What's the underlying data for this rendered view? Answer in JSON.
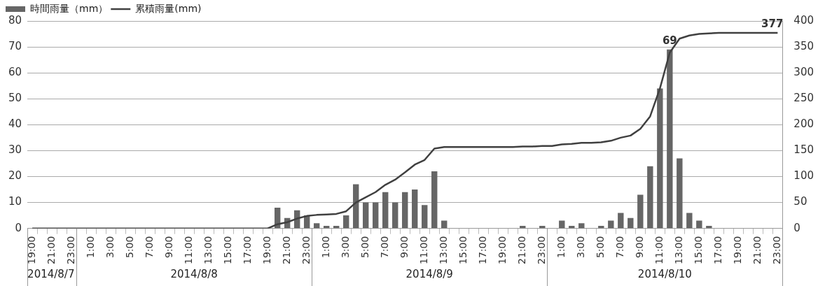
{
  "chart_data": {
    "type": "bar",
    "categories": [
      "19:00",
      null,
      "21:00",
      null,
      "23:00",
      null,
      "1:00",
      null,
      "3:00",
      null,
      "5:00",
      null,
      "7:00",
      null,
      "9:00",
      null,
      "11:00",
      null,
      "13:00",
      null,
      "15:00",
      null,
      "17:00",
      null,
      "19:00",
      null,
      "21:00",
      null,
      "23:00",
      null,
      "1:00",
      null,
      "3:00",
      null,
      "5:00",
      null,
      "7:00",
      null,
      "9:00",
      null,
      "11:00",
      null,
      "13:00",
      null,
      "15:00",
      null,
      "17:00",
      null,
      "19:00",
      null,
      "21:00",
      null,
      "23:00",
      null,
      "1:00",
      null,
      "3:00",
      null,
      "5:00",
      null,
      "7:00",
      null,
      "9:00",
      null,
      "11:00",
      null,
      "13:00",
      null,
      "15:00",
      null,
      "17:00",
      null,
      "19:00",
      null,
      "21:00",
      null,
      "23:00"
    ],
    "series": [
      {
        "name": "時間雨量（mm）",
        "color": "#666666",
        "values": [
          0,
          0,
          0,
          0,
          0,
          0,
          0,
          0,
          0,
          0,
          0,
          0,
          0,
          0,
          0,
          0,
          0,
          0,
          0,
          0,
          0,
          0,
          0,
          0,
          0,
          8,
          4,
          7,
          5,
          2,
          1,
          1,
          5,
          17,
          10,
          10,
          14,
          10,
          14,
          15,
          9,
          22,
          3,
          0,
          0,
          0,
          0,
          0,
          0,
          0,
          1,
          0,
          1,
          0,
          3,
          1,
          2,
          0,
          1,
          3,
          6,
          4,
          13,
          24,
          54,
          69,
          27,
          6,
          3,
          1,
          0,
          0,
          0,
          0,
          0,
          0,
          0
        ],
        "value_labels": [
          null,
          null,
          null,
          null,
          null,
          null,
          null,
          null,
          null,
          null,
          null,
          null,
          null,
          null,
          null,
          null,
          null,
          null,
          null,
          null,
          null,
          null,
          null,
          null,
          null,
          null,
          null,
          null,
          null,
          null,
          null,
          null,
          null,
          null,
          null,
          null,
          null,
          null,
          null,
          null,
          null,
          null,
          null,
          null,
          null,
          null,
          null,
          null,
          null,
          null,
          null,
          null,
          null,
          null,
          null,
          null,
          null,
          null,
          null,
          null,
          null,
          null,
          null,
          null,
          null,
          "69",
          null,
          null,
          null,
          null,
          null,
          null,
          null,
          null,
          null,
          null,
          null
        ]
      },
      {
        "name": "累積雨量(mm)",
        "type": "line",
        "axis": "y2",
        "color": "#404040",
        "values": [
          0,
          0,
          0,
          0,
          0,
          0,
          0,
          0,
          0,
          0,
          0,
          0,
          0,
          0,
          0,
          0,
          0,
          0,
          0,
          0,
          0,
          0,
          0,
          0,
          0,
          8,
          12,
          19,
          24,
          26,
          27,
          28,
          33,
          50,
          60,
          70,
          84,
          94,
          108,
          123,
          132,
          154,
          157,
          157,
          157,
          157,
          157,
          157,
          157,
          157,
          158,
          158,
          159,
          159,
          162,
          163,
          165,
          165,
          166,
          169,
          175,
          179,
          192,
          216,
          270,
          339,
          366,
          372,
          375,
          376,
          377,
          377,
          377,
          377,
          377,
          377,
          377
        ],
        "value_labels": [
          null,
          null,
          null,
          null,
          null,
          null,
          null,
          null,
          null,
          null,
          null,
          null,
          null,
          null,
          null,
          null,
          null,
          null,
          null,
          null,
          null,
          null,
          null,
          null,
          null,
          null,
          null,
          null,
          null,
          null,
          null,
          null,
          null,
          null,
          null,
          null,
          null,
          null,
          null,
          null,
          null,
          null,
          null,
          null,
          null,
          null,
          null,
          null,
          null,
          null,
          null,
          null,
          null,
          null,
          null,
          null,
          null,
          null,
          null,
          null,
          null,
          null,
          null,
          null,
          null,
          null,
          null,
          null,
          null,
          null,
          null,
          null,
          null,
          null,
          null,
          null,
          "377"
        ]
      }
    ],
    "ylim": [
      0,
      80
    ],
    "yticks": [
      0,
      10,
      20,
      30,
      40,
      50,
      60,
      70,
      80
    ],
    "y2lim": [
      0,
      400
    ],
    "y2ticks": [
      0,
      50,
      100,
      150,
      200,
      250,
      300,
      350,
      400
    ],
    "grid": "y",
    "legend": "top left",
    "marker": "none",
    "line_style": "solid",
    "annotations": [
      "2014/8/7",
      "2014/8/8",
      "2014/8/9",
      "2014/8/10"
    ]
  }
}
